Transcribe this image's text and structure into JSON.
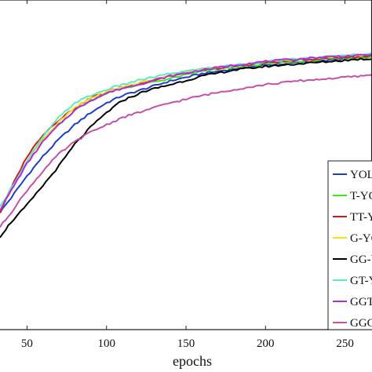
{
  "chart_data": {
    "type": "line",
    "xlabel": "epochs",
    "x_ticks": [
      50,
      100,
      150,
      200,
      250
    ],
    "xlim": [
      33,
      267
    ],
    "ylim": [
      0,
      1
    ],
    "grid": false,
    "legend_position": "bottom-right",
    "series": [
      {
        "name": "YOLO",
        "color": "#1f3fbf",
        "points": [
          [
            33,
            0.24
          ],
          [
            40,
            0.3
          ],
          [
            50,
            0.39
          ],
          [
            60,
            0.47
          ],
          [
            70,
            0.54
          ],
          [
            80,
            0.6
          ],
          [
            90,
            0.65
          ],
          [
            100,
            0.69
          ],
          [
            110,
            0.72
          ],
          [
            125,
            0.75
          ],
          [
            140,
            0.78
          ],
          [
            160,
            0.81
          ],
          [
            180,
            0.83
          ],
          [
            200,
            0.845
          ],
          [
            220,
            0.855
          ],
          [
            240,
            0.865
          ],
          [
            260,
            0.875
          ],
          [
            267,
            0.88
          ]
        ]
      },
      {
        "name": "T-YOLO",
        "color": "#3fe61f",
        "points": [
          [
            33,
            0.25
          ],
          [
            40,
            0.33
          ],
          [
            50,
            0.45
          ],
          [
            60,
            0.54
          ],
          [
            70,
            0.6
          ],
          [
            80,
            0.66
          ],
          [
            90,
            0.7
          ],
          [
            100,
            0.73
          ],
          [
            110,
            0.75
          ],
          [
            125,
            0.77
          ],
          [
            140,
            0.79
          ],
          [
            160,
            0.82
          ],
          [
            180,
            0.835
          ],
          [
            200,
            0.85
          ],
          [
            220,
            0.86
          ],
          [
            240,
            0.87
          ],
          [
            260,
            0.875
          ],
          [
            267,
            0.88
          ]
        ]
      },
      {
        "name": "TT-YOLO",
        "color": "#d11a1a",
        "points": [
          [
            33,
            0.24
          ],
          [
            40,
            0.34
          ],
          [
            50,
            0.47
          ],
          [
            60,
            0.56
          ],
          [
            70,
            0.62
          ],
          [
            80,
            0.67
          ],
          [
            90,
            0.71
          ],
          [
            100,
            0.735
          ],
          [
            110,
            0.755
          ],
          [
            125,
            0.775
          ],
          [
            140,
            0.8
          ],
          [
            160,
            0.825
          ],
          [
            180,
            0.84
          ],
          [
            200,
            0.855
          ],
          [
            220,
            0.865
          ],
          [
            240,
            0.875
          ],
          [
            260,
            0.88
          ],
          [
            267,
            0.885
          ]
        ]
      },
      {
        "name": "G-YOLO",
        "color": "#f0e21c",
        "points": [
          [
            33,
            0.25
          ],
          [
            40,
            0.33
          ],
          [
            50,
            0.45
          ],
          [
            60,
            0.54
          ],
          [
            70,
            0.61
          ],
          [
            80,
            0.67
          ],
          [
            90,
            0.71
          ],
          [
            100,
            0.735
          ],
          [
            110,
            0.755
          ],
          [
            125,
            0.78
          ],
          [
            140,
            0.805
          ],
          [
            160,
            0.83
          ],
          [
            180,
            0.845
          ],
          [
            200,
            0.86
          ],
          [
            220,
            0.87
          ],
          [
            240,
            0.88
          ],
          [
            260,
            0.885
          ],
          [
            267,
            0.89
          ]
        ]
      },
      {
        "name": "GG-YOLO",
        "color": "#000000",
        "points": [
          [
            33,
            0.14
          ],
          [
            40,
            0.2
          ],
          [
            50,
            0.27
          ],
          [
            60,
            0.35
          ],
          [
            70,
            0.43
          ],
          [
            80,
            0.52
          ],
          [
            90,
            0.59
          ],
          [
            100,
            0.65
          ],
          [
            110,
            0.7
          ],
          [
            125,
            0.74
          ],
          [
            140,
            0.765
          ],
          [
            160,
            0.8
          ],
          [
            180,
            0.825
          ],
          [
            200,
            0.84
          ],
          [
            220,
            0.85
          ],
          [
            240,
            0.86
          ],
          [
            260,
            0.87
          ],
          [
            267,
            0.87
          ]
        ]
      },
      {
        "name": "GT-YOLO",
        "color": "#5fe8c8",
        "points": [
          [
            33,
            0.26
          ],
          [
            40,
            0.34
          ],
          [
            50,
            0.45
          ],
          [
            60,
            0.55
          ],
          [
            70,
            0.63
          ],
          [
            80,
            0.69
          ],
          [
            90,
            0.72
          ],
          [
            100,
            0.745
          ],
          [
            110,
            0.765
          ],
          [
            125,
            0.79
          ],
          [
            140,
            0.81
          ],
          [
            160,
            0.83
          ],
          [
            180,
            0.845
          ],
          [
            200,
            0.86
          ],
          [
            220,
            0.87
          ],
          [
            240,
            0.88
          ],
          [
            260,
            0.89
          ],
          [
            267,
            0.895
          ]
        ]
      },
      {
        "name": "GGT-YOLO",
        "color": "#b52ae0",
        "points": [
          [
            33,
            0.25
          ],
          [
            40,
            0.33
          ],
          [
            50,
            0.44
          ],
          [
            60,
            0.53
          ],
          [
            70,
            0.6
          ],
          [
            80,
            0.66
          ],
          [
            90,
            0.7
          ],
          [
            100,
            0.73
          ],
          [
            110,
            0.75
          ],
          [
            125,
            0.775
          ],
          [
            140,
            0.8
          ],
          [
            160,
            0.825
          ],
          [
            180,
            0.845
          ],
          [
            200,
            0.86
          ],
          [
            220,
            0.87
          ],
          [
            240,
            0.88
          ],
          [
            260,
            0.885
          ],
          [
            267,
            0.89
          ]
        ]
      },
      {
        "name": "GGG-YOLO",
        "color": "#c252a6",
        "points": [
          [
            33,
            0.18
          ],
          [
            40,
            0.24
          ],
          [
            50,
            0.33
          ],
          [
            60,
            0.41
          ],
          [
            70,
            0.48
          ],
          [
            80,
            0.53
          ],
          [
            90,
            0.57
          ],
          [
            100,
            0.6
          ],
          [
            110,
            0.63
          ],
          [
            125,
            0.66
          ],
          [
            140,
            0.69
          ],
          [
            160,
            0.72
          ],
          [
            180,
            0.745
          ],
          [
            200,
            0.765
          ],
          [
            220,
            0.78
          ],
          [
            240,
            0.79
          ],
          [
            260,
            0.8
          ],
          [
            267,
            0.805
          ]
        ]
      }
    ]
  }
}
